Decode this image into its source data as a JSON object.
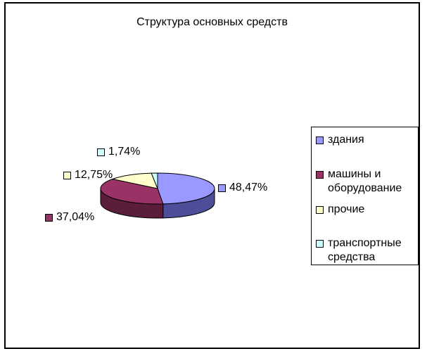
{
  "chart_data": {
    "type": "pie",
    "title": "Структура основных средств",
    "categories": [
      "здания",
      "машины и оборудование",
      "прочие",
      "транспортные средства"
    ],
    "values": [
      48.47,
      37.04,
      12.75,
      1.74
    ],
    "data_labels": [
      "48,47%",
      "37,04%",
      "12,75%",
      "1,74%"
    ],
    "colors": [
      "#9999ff",
      "#993366",
      "#ffffcc",
      "#ccffff"
    ],
    "dark_colors": [
      "#4d4d99",
      "#5a1e3a",
      "#b3b38c",
      "#8cb3b3"
    ],
    "legend_placement": "right",
    "style": "3d"
  }
}
